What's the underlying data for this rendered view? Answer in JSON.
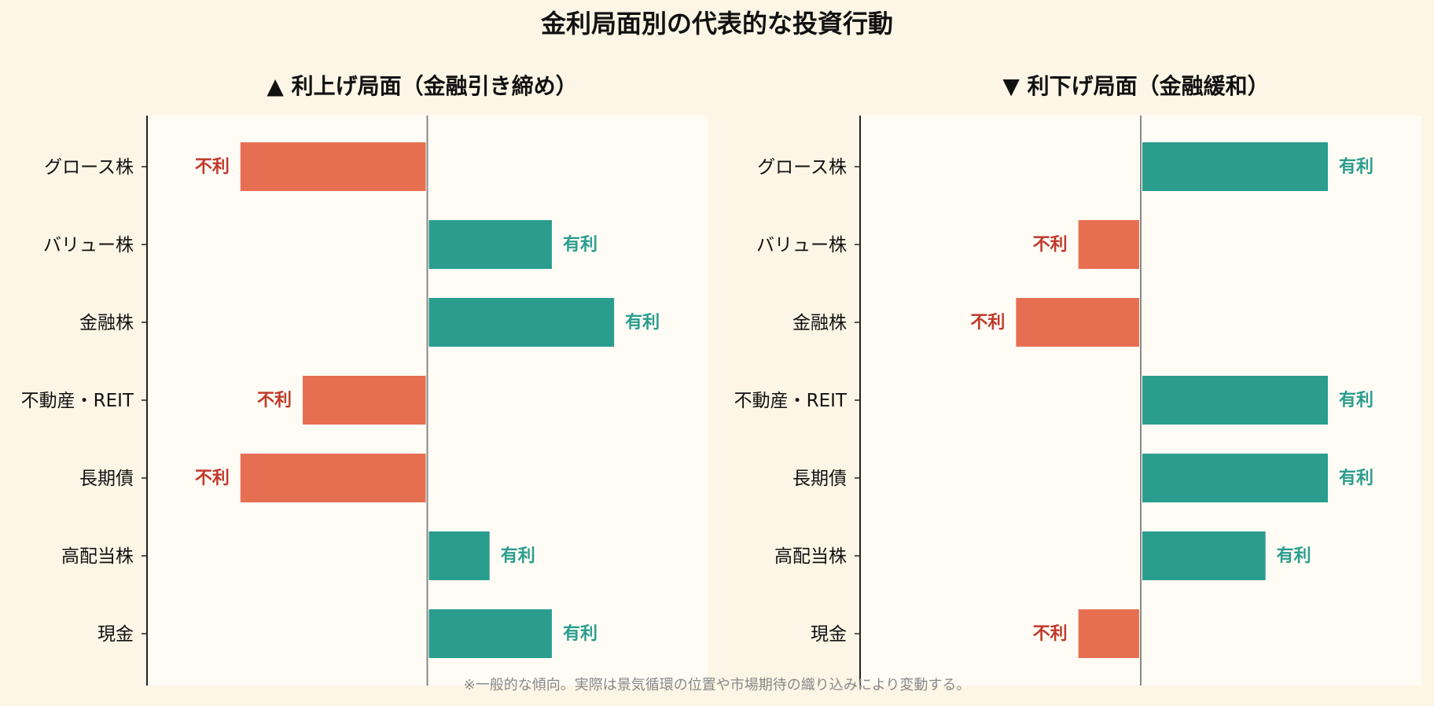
{
  "title": "金利局面別の代表的な投資行動",
  "footnote": "※一般的な傾向。実際は景気循環の位置や市場期待の織り込みにより変動する。",
  "colors": {
    "favorable": "#2a9d8f",
    "unfavorable": "#e76f51",
    "favorable_text": "#2a9d8f",
    "unfavorable_text": "#c0392b",
    "panel_bg": "#fffcf5",
    "page_bg": "#fdf6e6",
    "zero_line": "#888888"
  },
  "chart_data": [
    {
      "type": "bar",
      "orientation": "horizontal",
      "title": "▲ 利上げ局面（金融引き締め）",
      "categories": [
        "グロース株",
        "バリュー株",
        "金融株",
        "不動産・REIT",
        "長期債",
        "高配当株",
        "現金"
      ],
      "values": [
        -3,
        2,
        3,
        -2,
        -3,
        1,
        2
      ],
      "value_labels": [
        "不利",
        "有利",
        "有利",
        "不利",
        "不利",
        "有利",
        "有利"
      ],
      "xlim": [
        -4.5,
        4.5
      ],
      "grid": false
    },
    {
      "type": "bar",
      "orientation": "horizontal",
      "title": "▼ 利下げ局面（金融緩和）",
      "categories": [
        "グロース株",
        "バリュー株",
        "金融株",
        "不動産・REIT",
        "長期債",
        "高配当株",
        "現金"
      ],
      "values": [
        3,
        -1,
        -2,
        3,
        3,
        2,
        -1
      ],
      "value_labels": [
        "有利",
        "不利",
        "不利",
        "有利",
        "有利",
        "有利",
        "不利"
      ],
      "xlim": [
        -4.5,
        4.5
      ],
      "grid": false
    }
  ]
}
